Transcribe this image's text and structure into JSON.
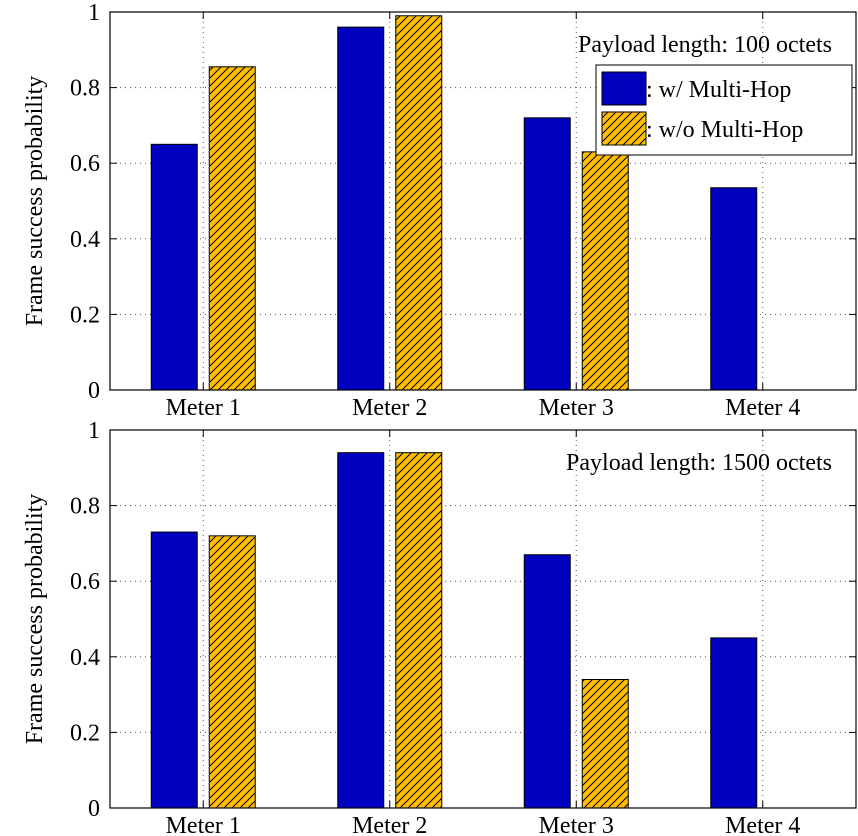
{
  "chart_data": [
    {
      "type": "bar",
      "categories": [
        "Meter 1",
        "Meter 2",
        "Meter 3",
        "Meter 4"
      ],
      "series": [
        {
          "name": ": w/ Multi-Hop",
          "values": [
            0.65,
            0.96,
            0.72,
            0.535
          ],
          "color": "#0000c0",
          "pattern": "solid"
        },
        {
          "name": ": w/o Multi-Hop",
          "values": [
            0.855,
            0.99,
            0.63,
            0
          ],
          "color": "#ffbf00",
          "pattern": "hatch"
        }
      ],
      "annotation": "Payload length: 100 octets",
      "xlabel": "",
      "ylabel": "Frame success probability",
      "ylim": [
        0,
        1
      ],
      "yticks": [
        "0",
        "0.2",
        "0.4",
        "0.6",
        "0.8",
        "1"
      ],
      "grid": true,
      "legend": {
        "position": "top-right",
        "show": true
      }
    },
    {
      "type": "bar",
      "categories": [
        "Meter 1",
        "Meter 2",
        "Meter 3",
        "Meter 4"
      ],
      "series": [
        {
          "name": ": w/ Multi-Hop",
          "values": [
            0.73,
            0.94,
            0.67,
            0.45
          ],
          "color": "#0000c0",
          "pattern": "solid"
        },
        {
          "name": ": w/o Multi-Hop",
          "values": [
            0.72,
            0.94,
            0.34,
            0
          ],
          "color": "#ffbf00",
          "pattern": "hatch"
        }
      ],
      "annotation": "Payload length: 1500 octets",
      "xlabel": "",
      "ylabel": "Frame success probability",
      "ylim": [
        0,
        1
      ],
      "yticks": [
        "0",
        "0.2",
        "0.4",
        "0.6",
        "0.8",
        "1"
      ],
      "grid": true,
      "legend": {
        "position": "top-right",
        "show": false
      }
    }
  ]
}
